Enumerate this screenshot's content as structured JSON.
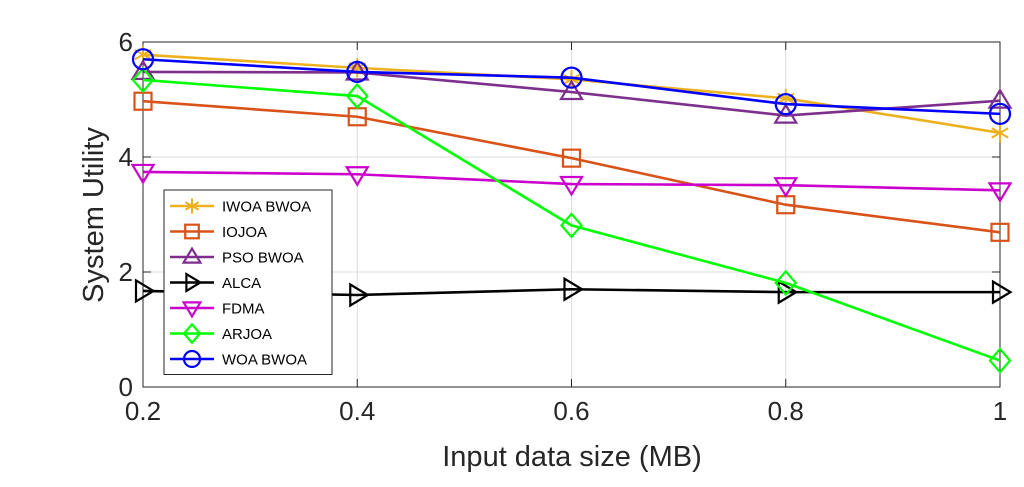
{
  "chart_data": {
    "type": "line",
    "xlabel": "Input data size (MB)",
    "ylabel": "System Utility",
    "x": [
      0.2,
      0.4,
      0.6,
      0.8,
      1.0
    ],
    "xlim": [
      0.2,
      1.0
    ],
    "ylim": [
      0,
      6
    ],
    "xticks": [
      0.2,
      0.4,
      0.6,
      0.8,
      1.0
    ],
    "xtick_labels": [
      "0.2",
      "0.4",
      "0.6",
      "0.8",
      "1"
    ],
    "yticks": [
      0,
      2,
      4,
      6
    ],
    "ytick_labels": [
      "0",
      "2",
      "4",
      "6"
    ],
    "grid": true,
    "legend_position": "lower-left",
    "series": [
      {
        "name": "IWOA BWOA",
        "marker": "asterisk",
        "color": "#EDB120",
        "values": [
          5.78,
          5.55,
          5.35,
          5.02,
          4.42
        ]
      },
      {
        "name": "IOJOA",
        "marker": "square",
        "color": "#D95319",
        "values": [
          4.97,
          4.7,
          3.98,
          3.17,
          2.69
        ]
      },
      {
        "name": "PSO BWOA",
        "marker": "triangle-up",
        "color": "#7E2F8E",
        "values": [
          5.48,
          5.47,
          5.13,
          4.72,
          4.98
        ]
      },
      {
        "name": "ALCA",
        "marker": "triangle-right",
        "color": "#000000",
        "values": [
          1.67,
          1.6,
          1.7,
          1.65,
          1.65
        ]
      },
      {
        "name": "FDMA",
        "marker": "triangle-down",
        "color": "#CC00CC",
        "values": [
          3.74,
          3.7,
          3.53,
          3.51,
          3.42
        ]
      },
      {
        "name": "ARJOA",
        "marker": "diamond",
        "color": "#00FF00",
        "values": [
          5.34,
          5.06,
          2.81,
          1.81,
          0.46
        ]
      },
      {
        "name": "WOA BWOA",
        "marker": "circle",
        "color": "#0000FF",
        "values": [
          5.7,
          5.48,
          5.38,
          4.92,
          4.75
        ]
      }
    ]
  }
}
